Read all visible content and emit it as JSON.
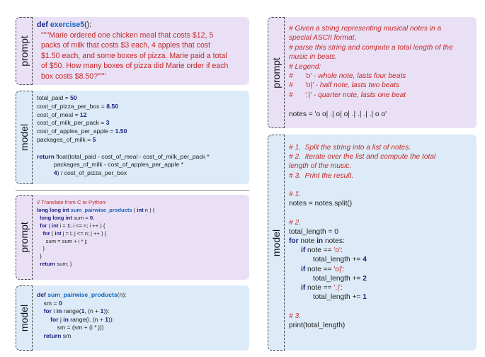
{
  "labels": {
    "prompt": "prompt",
    "model": "model"
  },
  "p1": {
    "def_kw": "def",
    "fn_name": "exercise5",
    "sig_rest": "():",
    "doc": [
      "\"\"\"Marie ordered one chicken meal that costs $12, 5",
      "packs of milk that costs $3 each, 4 apples that cost",
      "$1.50 each, and some boxes of pizza. Marie paid a total",
      "of $50. How many boxes of pizza did Marie order if each",
      "box costs $8.50?\"\"\""
    ]
  },
  "m1": {
    "assigns": [
      {
        "name": "total_paid = ",
        "val": "50"
      },
      {
        "name": "cost_of_pizza_per_box = ",
        "val": "8.50"
      },
      {
        "name": "cost_of_meal = ",
        "val": "12"
      },
      {
        "name": "cost_of_milk_per_pack = ",
        "val": "3"
      },
      {
        "name": "cost_of_apples_per_apple = ",
        "val": "1.50"
      },
      {
        "name": "packages_of_milk = ",
        "val": "5"
      }
    ],
    "ret_kw": "return",
    "ret_1": " float(total_paid - cost_of_meal - cost_of_milk_per_pack *",
    "ret_2": "          packages_of_milk - cost_of_apples_per_apple *",
    "ret_3a": "          ",
    "ret_3n": "4",
    "ret_3b": ") / cost_of_pizza_per_box"
  },
  "p2": {
    "comment": "// Translate from C to Python:",
    "l1_kw": "long long int",
    "l1_fn": "sum_pairwise_products",
    "l1_a": " ( ",
    "l1_kw2": "int",
    "l1_b": " n ) {",
    "l2_kw": "long long int",
    "l2_a": " sum = ",
    "l2_n": "0",
    "l2_b": ";",
    "l3_kw": "for",
    "l3_a": " ( ",
    "l3_kw2": "int",
    "l3_b": " i = ",
    "l3_n": "1",
    "l3_c": "; i <= n; i ++ ) {",
    "l4_kw": "for",
    "l4_a": " ( ",
    "l4_kw2": "int",
    "l4_b": " j = i; j <= n; j ++ ) {",
    "l5": "sum = sum + i * j;",
    "l6": "}",
    "l7": "}",
    "l8_kw": "return",
    "l8_a": " sum; }"
  },
  "m2": {
    "def_kw": "def",
    "fn_name": "sum_pairwise_products",
    "sig_rest": "(n):",
    "l2a": "sm = ",
    "l2n": "0",
    "l3_kw": "for",
    "l3_a": " i ",
    "l3_kw2": "in",
    "l3_b": " range(",
    "l3_n1": "1",
    "l3_c": ", (n + ",
    "l3_n2": "1",
    "l3_d": ")):",
    "l4_kw": "for",
    "l4_a": " j ",
    "l4_kw2": "in",
    "l4_b": " range(i, (n + ",
    "l4_n": "1",
    "l4_c": ")):",
    "l5": "sm = (sm + (i * j))",
    "l6_kw": "return",
    "l6_a": " sm"
  },
  "p3": {
    "comments": [
      "# Given a string representing musical notes in a",
      "special ASCII format,",
      "# parse this string and compute a total length of the",
      "music in beats.",
      "# Legend:",
      "#      'o' - whole note, lasts four beats",
      "#      'o|' - half note, lasts two beats",
      "#      '.|' - quarter note, lasts one beat"
    ],
    "notes_line": "notes = 'o o| .| o| o| .| .| .| .| o o'"
  },
  "m3": {
    "c1": "# 1.  Split the string into a list of notes.",
    "c2": "# 2.  Iterate over the list and compute the total",
    "c3": "length of the music.",
    "c4": "# 3.  Print the result.",
    "s1c": "# 1.",
    "s1": "notes = notes.split()",
    "s2c": "# 2.",
    "s2a": "total_length = 0",
    "s2b_kw": "for",
    "s2b_a": " note ",
    "s2b_kw2": "in",
    "s2b_b": " notes:",
    "if_kw": "if",
    "if1_a": " note == ",
    "if1_s": "'o'",
    "if1_b": ":",
    "inc1_a": "total_length += ",
    "inc1_n": "4",
    "if2_a": " note == ",
    "if2_s": "'o|'",
    "if2_b": ":",
    "inc2_a": "total_length += ",
    "inc2_n": "2",
    "if3_a": " note == ",
    "if3_s": "'.|'",
    "if3_b": ":",
    "inc3_a": "total_length += ",
    "inc3_n": "1",
    "s3c": "# 3.",
    "s3": "print(total_length)"
  }
}
